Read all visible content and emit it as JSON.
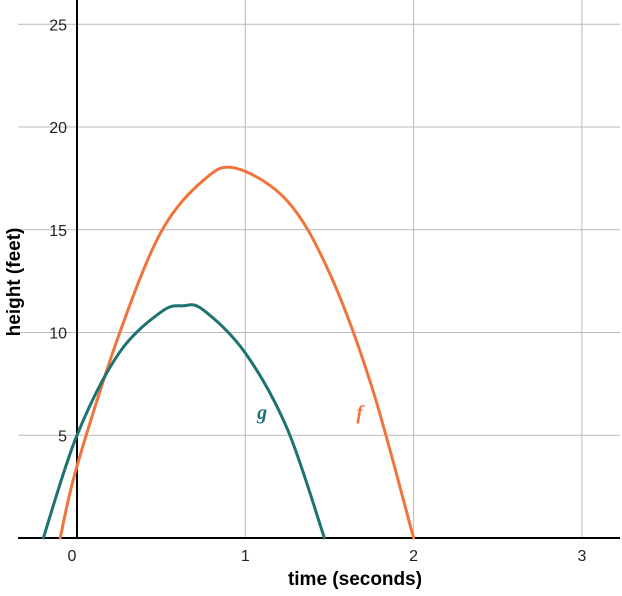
{
  "chart_data": {
    "type": "line",
    "xlabel": "time (seconds)",
    "ylabel": "height (feet)",
    "xlim": [
      -0.35,
      3.25
    ],
    "ylim": [
      0,
      26.3
    ],
    "x_ticks": [
      0,
      1,
      2,
      3
    ],
    "y_ticks": [
      5,
      10,
      15,
      20,
      25
    ],
    "x_tick_labels": [
      "0",
      "1",
      "2",
      "3"
    ],
    "y_tick_labels": [
      "5",
      "10",
      "15",
      "20",
      "25"
    ],
    "grid": true,
    "series": [
      {
        "name": "f",
        "color": "#f0743c",
        "x": [
          -0.1,
          0,
          0.25,
          0.5,
          0.75,
          0.94,
          1.25,
          1.5,
          1.75,
          2.0
        ],
        "y": [
          0,
          3.5,
          9.9,
          14.9,
          17.4,
          18.0,
          16.4,
          12.9,
          7.4,
          0
        ],
        "label_at": [
          1.68,
          5.8
        ]
      },
      {
        "name": "g",
        "color": "#1d7273",
        "x": [
          -0.2,
          0,
          0.25,
          0.5,
          0.63,
          0.75,
          1.0,
          1.25,
          1.47
        ],
        "y": [
          0,
          5.0,
          9.0,
          11.0,
          11.3,
          11.1,
          9.0,
          5.3,
          0
        ],
        "label_at": [
          1.1,
          5.8
        ]
      }
    ]
  }
}
